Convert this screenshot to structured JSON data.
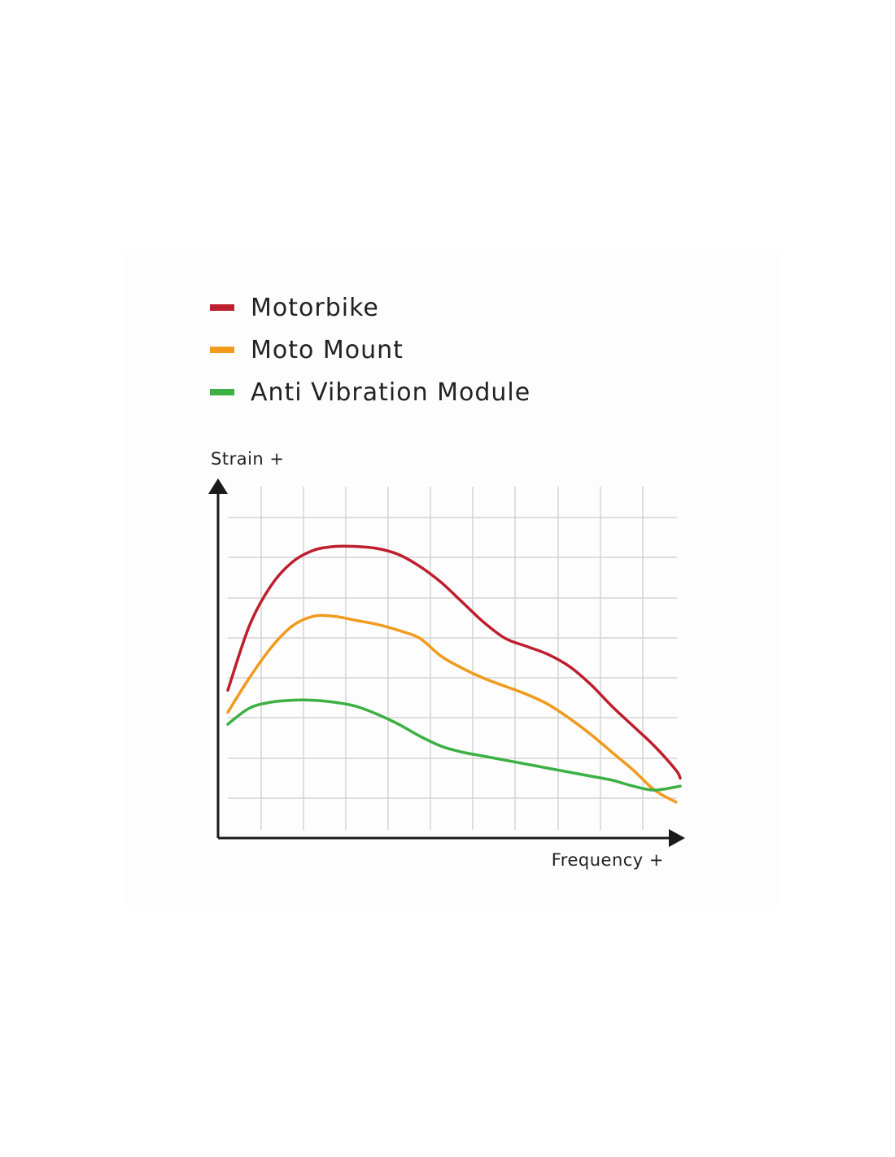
{
  "chart_data": {
    "type": "line",
    "ylabel": "Strain +",
    "xlabel": "Frequency +",
    "grid": true,
    "legend_position": "top-left",
    "xlim": [
      0,
      10.6
    ],
    "ylim": [
      0,
      8.8
    ],
    "series": [
      {
        "name": "Motorbike",
        "color": "#be1e2d",
        "x": [
          0,
          0.5,
          1,
          1.5,
          2,
          2.5,
          3,
          3.5,
          4,
          4.5,
          5,
          5.5,
          6,
          6.5,
          7,
          7.5,
          8,
          8.5,
          9,
          9.5,
          10,
          10.5,
          10.6
        ],
        "y": [
          3.7,
          5.3,
          6.3,
          6.9,
          7.2,
          7.3,
          7.3,
          7.25,
          7.1,
          6.8,
          6.4,
          5.9,
          5.4,
          5.0,
          4.8,
          4.6,
          4.3,
          3.85,
          3.3,
          2.8,
          2.3,
          1.7,
          1.5
        ]
      },
      {
        "name": "Moto Mount",
        "color": "#f09a1e",
        "x": [
          0,
          0.5,
          1,
          1.5,
          2,
          2.5,
          3,
          3.5,
          4,
          4.5,
          5,
          5.5,
          6,
          6.5,
          7,
          7.5,
          8,
          8.5,
          9,
          9.5,
          10,
          10.5
        ],
        "y": [
          3.15,
          4.0,
          4.75,
          5.3,
          5.55,
          5.55,
          5.45,
          5.35,
          5.2,
          5.0,
          4.55,
          4.25,
          4.0,
          3.8,
          3.6,
          3.35,
          3.0,
          2.6,
          2.15,
          1.7,
          1.2,
          0.9
        ]
      },
      {
        "name": "Anti Vibration Module",
        "color": "#3cb043",
        "x": [
          0,
          0.5,
          1,
          1.5,
          2,
          2.5,
          3,
          3.5,
          4,
          4.5,
          5,
          5.5,
          6,
          6.5,
          7,
          7.5,
          8,
          8.5,
          9,
          9.5,
          10,
          10.6
        ],
        "y": [
          2.85,
          3.25,
          3.4,
          3.45,
          3.45,
          3.4,
          3.3,
          3.1,
          2.85,
          2.55,
          2.3,
          2.15,
          2.05,
          1.95,
          1.85,
          1.75,
          1.65,
          1.55,
          1.45,
          1.3,
          1.2,
          1.3
        ]
      }
    ]
  }
}
